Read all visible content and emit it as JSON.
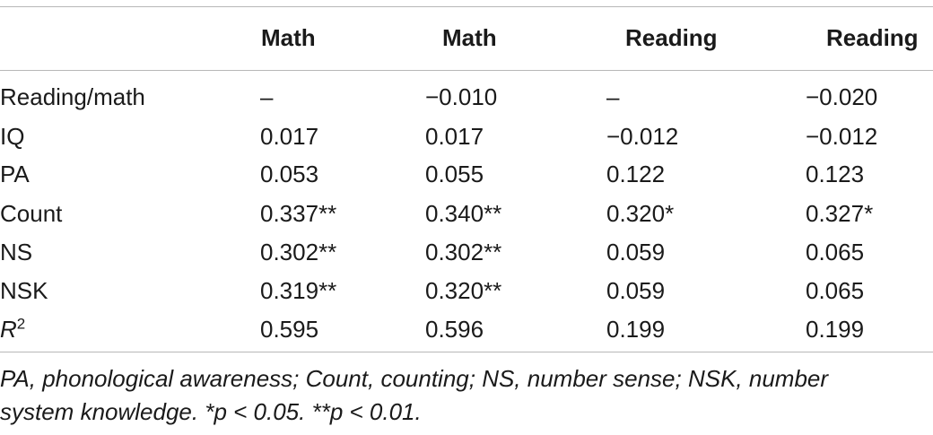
{
  "table": {
    "headers": [
      "",
      "Math",
      "Math",
      "Reading",
      "Reading"
    ],
    "rows": [
      {
        "label": "Reading/math",
        "values": [
          "–",
          "−0.010",
          "–",
          "−0.020"
        ]
      },
      {
        "label": "IQ",
        "values": [
          "0.017",
          "0.017",
          "−0.012",
          "−0.012"
        ]
      },
      {
        "label": "PA",
        "values": [
          "0.053",
          "0.055",
          "0.122",
          "0.123"
        ]
      },
      {
        "label": "Count",
        "values": [
          "0.337**",
          "0.340**",
          "0.320*",
          "0.327*"
        ]
      },
      {
        "label": "NS",
        "values": [
          "0.302**",
          "0.302**",
          "0.059",
          "0.065"
        ]
      },
      {
        "label": "NSK",
        "values": [
          "0.319**",
          "0.320**",
          "0.059",
          "0.065"
        ]
      },
      {
        "label_base": "R",
        "label_sup": "2",
        "values": [
          "0.595",
          "0.596",
          "0.199",
          "0.199"
        ]
      }
    ]
  },
  "footnote": {
    "line1": "PA, phonological awareness; Count, counting; NS, number sense; NSK, number",
    "line2": "system knowledge. *p < 0.05. **p < 0.01."
  }
}
